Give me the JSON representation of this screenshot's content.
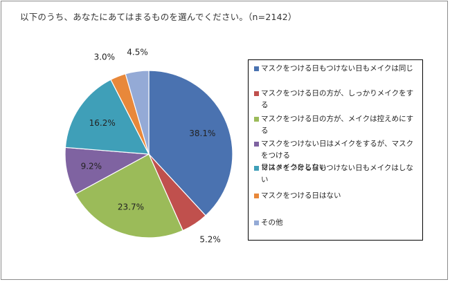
{
  "title": "以下のうち、あなたにあてはまるものを選んでください。（n=2142）",
  "chart_data": {
    "type": "pie",
    "slices": [
      {
        "label": "マスクをつける日もつけない日もメイクは同じ",
        "value": 38.1,
        "value_label": "38.1%",
        "color": "#4a72b0"
      },
      {
        "label": "マスクをつける日の方が、しっかりメイクをする",
        "value": 5.2,
        "value_label": "5.2%",
        "color": "#c0504d"
      },
      {
        "label": "マスクをつける日の方が、メイクは控えめにする",
        "value": 23.7,
        "value_label": "23.7%",
        "color": "#9bbb59"
      },
      {
        "label": "マスクをつけない日はメイクをするが、マスクをつける日はメイクをしない",
        "value": 9.2,
        "value_label": "9.2%",
        "color": "#7f63a1"
      },
      {
        "label": "マスクをつける日もつけない日もメイクはしない",
        "value": 16.2,
        "value_label": "16.2%",
        "color": "#3f9fb8"
      },
      {
        "label": "マスクをつける日はない",
        "value": 3.0,
        "value_label": "3.0%",
        "color": "#e8883a"
      },
      {
        "label": "その他",
        "value": 4.5,
        "value_label": "4.5%",
        "color": "#94aad6"
      }
    ],
    "legend_position": "right"
  },
  "legend": {
    "items": [
      {
        "label_line1": "マスクをつける日もつけない日もメイクは同じ",
        "label_line2": ""
      },
      {
        "label_line1": "マスクをつける日の方が、しっかりメイクをする",
        "label_line2": ""
      },
      {
        "label_line1": "マスクをつける日の方が、メイクは控えめにする",
        "label_line2": ""
      },
      {
        "label_line1": "マスクをつけない日はメイクをするが、マスクをつける",
        "label_line2": "日はメイクをしない"
      },
      {
        "label_line1": "マスクをつける日もつけない日もメイクはしない",
        "label_line2": ""
      },
      {
        "label_line1": "マスクをつける日はない",
        "label_line2": ""
      },
      {
        "label_line1": "その他",
        "label_line2": ""
      }
    ]
  }
}
